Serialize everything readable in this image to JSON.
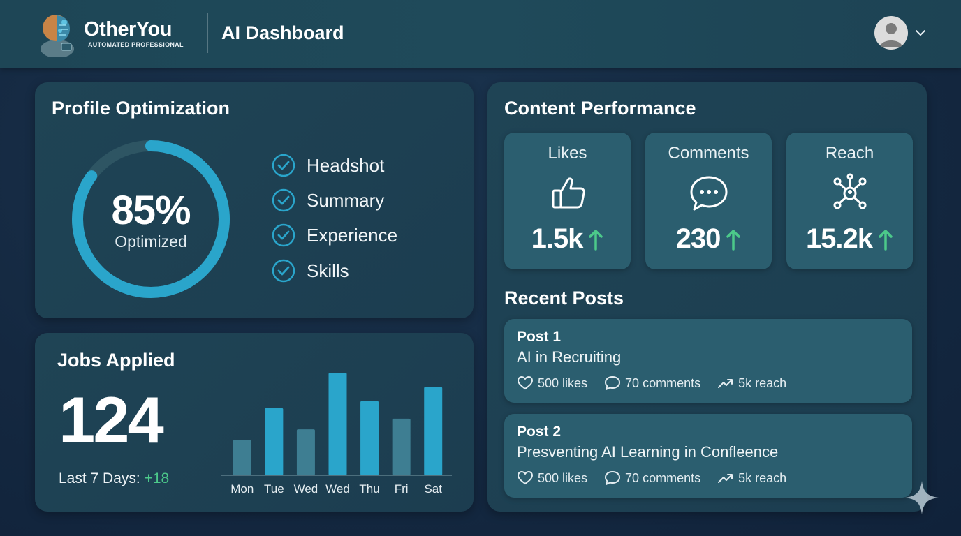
{
  "header": {
    "brand_name": "OtherYou",
    "brand_tagline": "AUTOMATED PROFESSIONAL",
    "page_title": "AI Dashboard",
    "logo_icon": "robot-person-logo",
    "avatar_icon": "user-avatar",
    "dropdown_icon": "chevron-down-icon"
  },
  "profile": {
    "title": "Profile Optimization",
    "percent_text": "85%",
    "percent_value": 85,
    "status_label": "Optimized",
    "checklist": [
      {
        "label": "Headshot",
        "checked": true
      },
      {
        "label": "Summary",
        "checked": true
      },
      {
        "label": "Experience",
        "checked": true
      },
      {
        "label": "Skills",
        "checked": true
      }
    ]
  },
  "jobs": {
    "title": "Jobs Applied",
    "total": "124",
    "period_label": "Last 7 Days:",
    "period_delta": "+18"
  },
  "chart_data": {
    "type": "bar",
    "categories": [
      "Mon",
      "Tue",
      "Wed",
      "Wed",
      "Thu",
      "Fri",
      "Sat"
    ],
    "values": [
      10,
      19,
      13,
      29,
      21,
      16,
      25
    ],
    "ylim": [
      0,
      30
    ],
    "grid": false,
    "colors": [
      "#3e7e92",
      "#2aa5cb",
      "#3e7e92",
      "#2aa5cb",
      "#2aa5cb",
      "#3e7e92",
      "#2aa5cb"
    ]
  },
  "content": {
    "title": "Content Performance",
    "stats": [
      {
        "label": "Likes",
        "value": "1.5k",
        "icon": "thumbs-up-icon",
        "trend": "up"
      },
      {
        "label": "Comments",
        "value": "230",
        "icon": "comment-bubble-icon",
        "trend": "up"
      },
      {
        "label": "Reach",
        "value": "15.2k",
        "icon": "network-icon",
        "trend": "up"
      }
    ],
    "trend_color": "#4cc98a"
  },
  "recent_posts": {
    "title": "Recent Posts",
    "posts": [
      {
        "name": "Post 1",
        "title": "AI in Recruiting",
        "likes": "500 likes",
        "comments": "70 comments",
        "reach": "5k reach"
      },
      {
        "name": "Post 2",
        "title": "Presventing AI Learning in Confleence",
        "likes": "500 likes",
        "comments": "70 comments",
        "reach": "5k reach"
      }
    ]
  },
  "colors": {
    "accent": "#2aa5cb",
    "positive": "#4cc98a",
    "card": "#1f4455",
    "tile": "#2b5e6f"
  }
}
